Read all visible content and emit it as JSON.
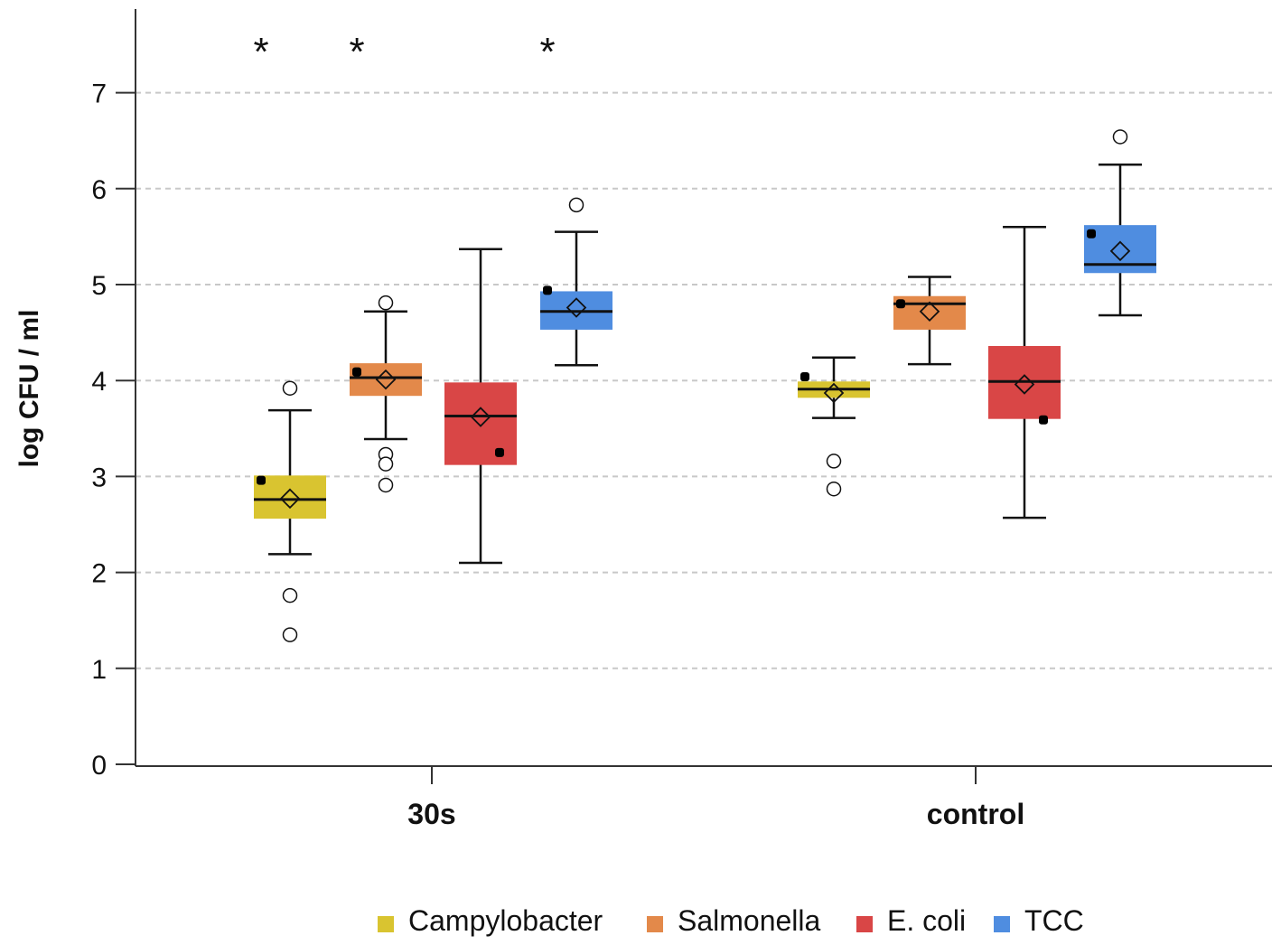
{
  "chart_data": {
    "type": "boxplot",
    "title": "",
    "xlabel": "",
    "ylabel": "log CFU / ml",
    "ylim": [
      0,
      7.8
    ],
    "yticks": [
      "0",
      "1",
      "2",
      "3",
      "4",
      "5",
      "6",
      "7"
    ],
    "grid": true,
    "legend_position": "bottom",
    "categories": [
      "30s",
      "control"
    ],
    "significance_marker": "*",
    "series": [
      {
        "name": "Campylobacter",
        "color": "#d9c430",
        "boxes": [
          {
            "group": "30s",
            "whisker_low": 2.19,
            "q1": 2.56,
            "median": 2.76,
            "q3": 3.01,
            "whisker_high": 3.69,
            "mean": 2.77,
            "highlight": 2.96,
            "outliers": [
              3.92,
              1.76,
              1.35
            ],
            "significant": true
          },
          {
            "group": "control",
            "whisker_low": 3.61,
            "q1": 3.82,
            "median": 3.91,
            "q3": 3.99,
            "whisker_high": 4.24,
            "mean": 3.87,
            "highlight": 4.04,
            "outliers": [
              3.16,
              2.87
            ],
            "significant": false
          }
        ]
      },
      {
        "name": "Salmonella",
        "color": "#e3894a",
        "boxes": [
          {
            "group": "30s",
            "whisker_low": 3.39,
            "q1": 3.84,
            "median": 4.03,
            "q3": 4.18,
            "whisker_high": 4.72,
            "mean": 4.01,
            "highlight": 4.09,
            "outliers": [
              4.81,
              3.23,
              3.13,
              2.91
            ],
            "significant": true
          },
          {
            "group": "control",
            "whisker_low": 4.17,
            "q1": 4.53,
            "median": 4.8,
            "q3": 4.88,
            "whisker_high": 5.08,
            "mean": 4.72,
            "highlight": 4.8,
            "outliers": [],
            "significant": false
          }
        ]
      },
      {
        "name": "E. coli",
        "color": "#d94646",
        "boxes": [
          {
            "group": "30s",
            "whisker_low": 2.1,
            "q1": 3.12,
            "median": 3.63,
            "q3": 3.98,
            "whisker_high": 5.37,
            "mean": 3.62,
            "highlight": 3.25,
            "outliers": [],
            "significant": false
          },
          {
            "group": "control",
            "whisker_low": 2.57,
            "q1": 3.6,
            "median": 3.99,
            "q3": 4.36,
            "whisker_high": 5.6,
            "mean": 3.96,
            "highlight": 3.59,
            "outliers": [],
            "significant": false
          }
        ]
      },
      {
        "name": "TCC",
        "color": "#4f8de0",
        "boxes": [
          {
            "group": "30s",
            "whisker_low": 4.16,
            "q1": 4.53,
            "median": 4.72,
            "q3": 4.93,
            "whisker_high": 5.55,
            "mean": 4.76,
            "highlight": 4.94,
            "outliers": [
              5.83
            ],
            "significant": true
          },
          {
            "group": "control",
            "whisker_low": 4.68,
            "q1": 5.12,
            "median": 5.21,
            "q3": 5.62,
            "whisker_high": 6.25,
            "mean": 5.35,
            "highlight": 5.53,
            "outliers": [
              6.54
            ],
            "significant": false
          }
        ]
      }
    ]
  }
}
